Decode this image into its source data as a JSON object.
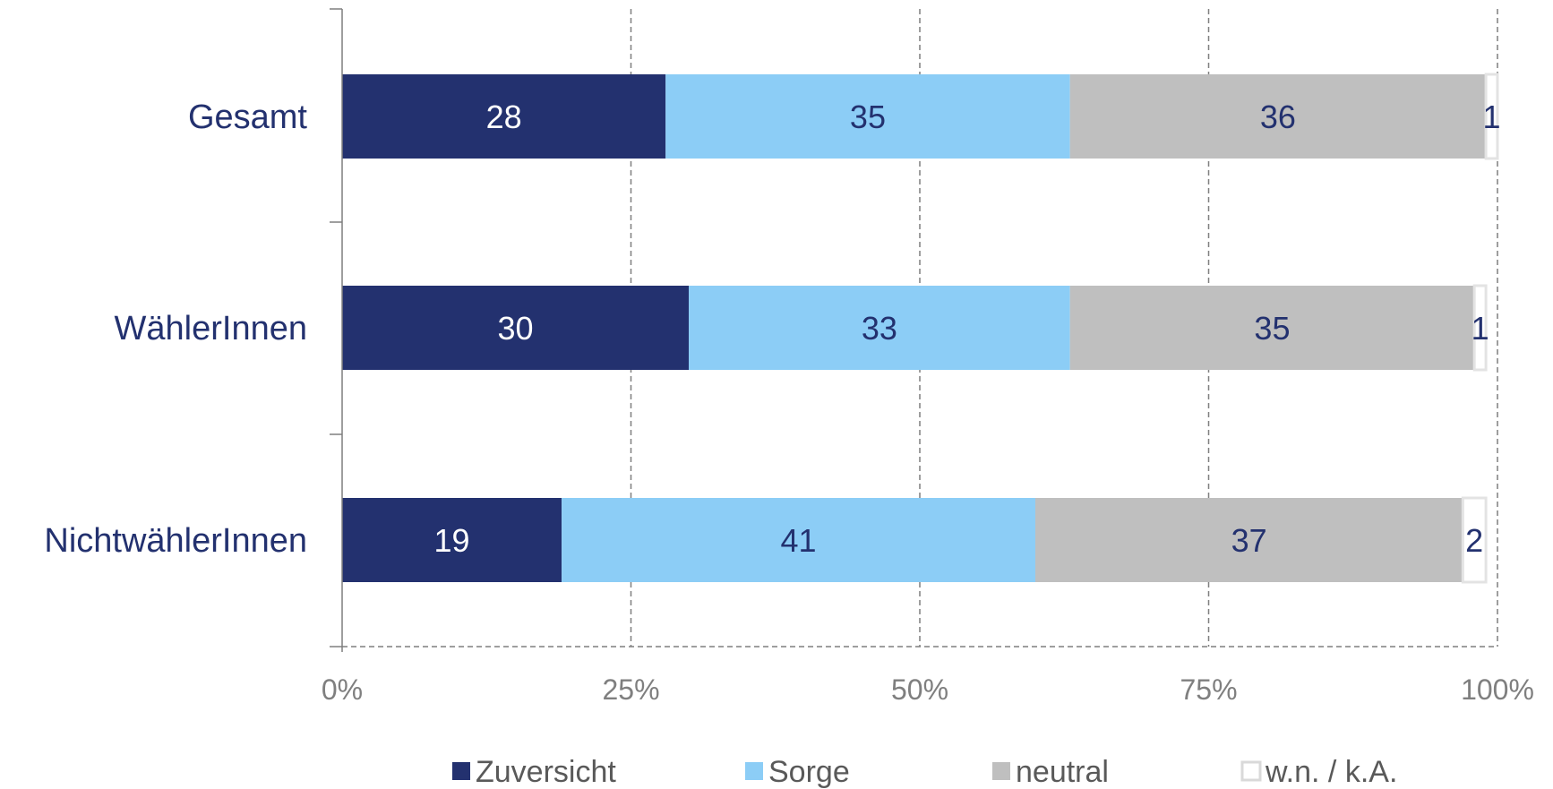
{
  "chart_data": {
    "type": "bar",
    "orientation": "horizontal",
    "stacked": true,
    "categories": [
      "Gesamt",
      "WählerInnen",
      "NichtwählerInnen"
    ],
    "series": [
      {
        "name": "Zuversicht",
        "values": [
          28,
          30,
          19
        ],
        "color": "#23316f",
        "label_color": "#ffffff"
      },
      {
        "name": "Sorge",
        "values": [
          35,
          33,
          41
        ],
        "color": "#8ccdf6",
        "label_color": "#23316f"
      },
      {
        "name": "neutral",
        "values": [
          36,
          35,
          37
        ],
        "color": "#bfbfbf",
        "label_color": "#23316f"
      },
      {
        "name": "w.n. / k.A.",
        "values": [
          1,
          1,
          2
        ],
        "color": "#ffffff",
        "label_color": "#23316f"
      }
    ],
    "xlim": [
      0,
      100
    ],
    "xticks": [
      "0%",
      "25%",
      "50%",
      "75%",
      "100%"
    ],
    "grid": "vertical-dashed",
    "legend": "bottom",
    "title": "",
    "xlabel": "",
    "ylabel": ""
  }
}
